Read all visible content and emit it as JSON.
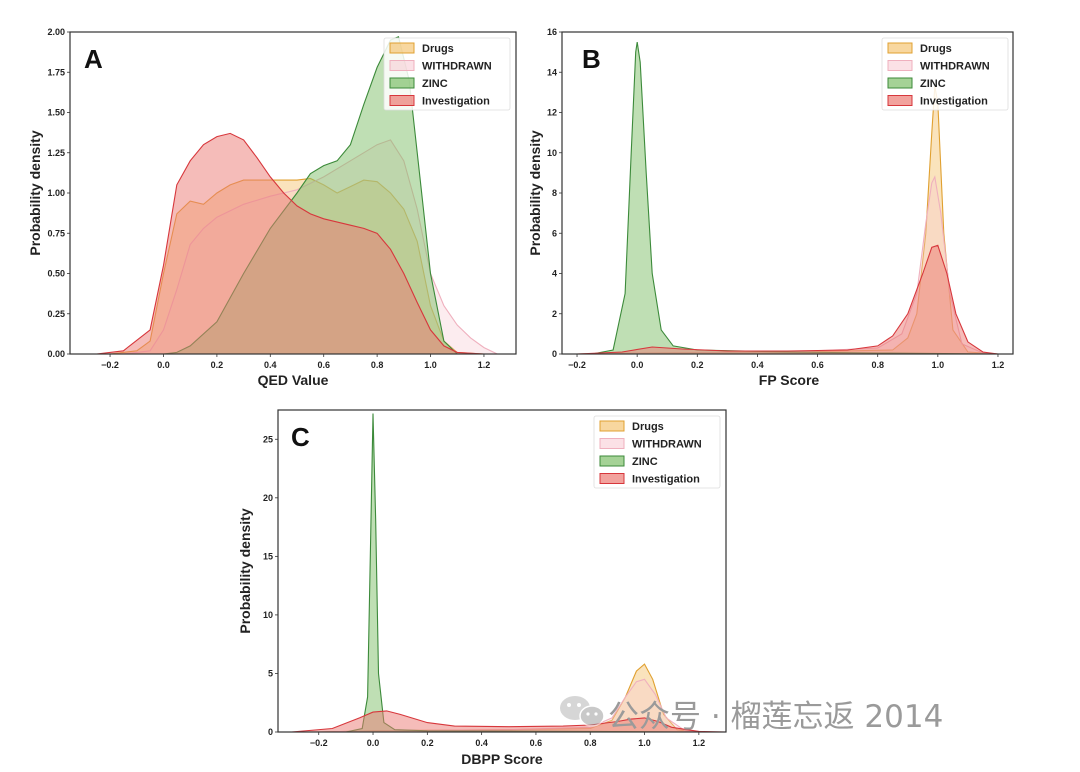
{
  "series_styles": [
    {
      "name": "Drugs",
      "fill": "#f5c26b",
      "stroke": "#e0a030",
      "opacity": 0.45
    },
    {
      "name": "WITHDRAWN",
      "fill": "#f7c9d2",
      "stroke": "#efb0be",
      "opacity": 0.35
    },
    {
      "name": "ZINC",
      "fill": "#7fbf6a",
      "stroke": "#3c8a3a",
      "opacity": 0.5
    },
    {
      "name": "Investigation",
      "fill": "#ec7a74",
      "stroke": "#d7373c",
      "opacity": 0.5
    }
  ],
  "chart_data": [
    {
      "panel": "A",
      "type": "area",
      "xlabel": "QED Value",
      "ylabel": "Probability density",
      "xlim": [
        -0.35,
        1.32
      ],
      "ylim": [
        0,
        2.0
      ],
      "xticks": [
        -0.2,
        0.0,
        0.2,
        0.4,
        0.6,
        0.8,
        1.0,
        1.2
      ],
      "xtick_labels": [
        "−0.2",
        "0.0",
        "0.2",
        "0.4",
        "0.6",
        "0.8",
        "1.0",
        "1.2"
      ],
      "yticks": [
        0,
        0.25,
        0.5,
        0.75,
        1.0,
        1.25,
        1.5,
        1.75,
        2.0
      ],
      "ytick_labels": [
        "0.00",
        "0.25",
        "0.50",
        "0.75",
        "1.00",
        "1.25",
        "1.50",
        "1.75",
        "2.00"
      ],
      "legend": "top-right",
      "series": [
        {
          "name": "Drugs",
          "points": [
            [
              -0.2,
              0
            ],
            [
              -0.1,
              0.02
            ],
            [
              -0.05,
              0.08
            ],
            [
              0.0,
              0.5
            ],
            [
              0.05,
              0.87
            ],
            [
              0.1,
              0.95
            ],
            [
              0.15,
              0.93
            ],
            [
              0.2,
              1.0
            ],
            [
              0.25,
              1.05
            ],
            [
              0.3,
              1.08
            ],
            [
              0.4,
              1.08
            ],
            [
              0.5,
              1.08
            ],
            [
              0.55,
              1.09
            ],
            [
              0.6,
              1.05
            ],
            [
              0.65,
              1.0
            ],
            [
              0.7,
              1.04
            ],
            [
              0.75,
              1.08
            ],
            [
              0.8,
              1.07
            ],
            [
              0.85,
              1.0
            ],
            [
              0.9,
              0.9
            ],
            [
              0.95,
              0.7
            ],
            [
              1.0,
              0.3
            ],
            [
              1.05,
              0.08
            ],
            [
              1.1,
              0.01
            ],
            [
              1.2,
              0
            ]
          ]
        },
        {
          "name": "WITHDRAWN",
          "points": [
            [
              -0.15,
              0
            ],
            [
              -0.05,
              0.02
            ],
            [
              0.0,
              0.15
            ],
            [
              0.05,
              0.4
            ],
            [
              0.1,
              0.68
            ],
            [
              0.15,
              0.78
            ],
            [
              0.2,
              0.85
            ],
            [
              0.3,
              0.93
            ],
            [
              0.4,
              0.98
            ],
            [
              0.5,
              1.02
            ],
            [
              0.6,
              1.1
            ],
            [
              0.7,
              1.2
            ],
            [
              0.8,
              1.3
            ],
            [
              0.85,
              1.33
            ],
            [
              0.9,
              1.2
            ],
            [
              0.95,
              0.9
            ],
            [
              1.0,
              0.5
            ],
            [
              1.05,
              0.3
            ],
            [
              1.1,
              0.18
            ],
            [
              1.15,
              0.1
            ],
            [
              1.2,
              0.04
            ],
            [
              1.25,
              0
            ]
          ]
        },
        {
          "name": "ZINC",
          "points": [
            [
              0.0,
              0
            ],
            [
              0.05,
              0.01
            ],
            [
              0.1,
              0.05
            ],
            [
              0.2,
              0.2
            ],
            [
              0.3,
              0.5
            ],
            [
              0.4,
              0.78
            ],
            [
              0.5,
              1.0
            ],
            [
              0.55,
              1.12
            ],
            [
              0.6,
              1.17
            ],
            [
              0.65,
              1.2
            ],
            [
              0.7,
              1.3
            ],
            [
              0.75,
              1.55
            ],
            [
              0.8,
              1.78
            ],
            [
              0.85,
              1.95
            ],
            [
              0.88,
              1.97
            ],
            [
              0.92,
              1.7
            ],
            [
              0.96,
              1.1
            ],
            [
              1.0,
              0.5
            ],
            [
              1.05,
              0.08
            ],
            [
              1.1,
              0
            ]
          ]
        },
        {
          "name": "Investigation",
          "points": [
            [
              -0.25,
              0
            ],
            [
              -0.15,
              0.02
            ],
            [
              -0.05,
              0.15
            ],
            [
              0.0,
              0.55
            ],
            [
              0.05,
              1.05
            ],
            [
              0.1,
              1.2
            ],
            [
              0.15,
              1.3
            ],
            [
              0.2,
              1.35
            ],
            [
              0.25,
              1.37
            ],
            [
              0.3,
              1.33
            ],
            [
              0.35,
              1.22
            ],
            [
              0.4,
              1.1
            ],
            [
              0.45,
              1.0
            ],
            [
              0.5,
              0.92
            ],
            [
              0.55,
              0.87
            ],
            [
              0.6,
              0.84
            ],
            [
              0.7,
              0.8
            ],
            [
              0.75,
              0.78
            ],
            [
              0.8,
              0.75
            ],
            [
              0.85,
              0.65
            ],
            [
              0.9,
              0.5
            ],
            [
              0.95,
              0.32
            ],
            [
              1.0,
              0.15
            ],
            [
              1.05,
              0.05
            ],
            [
              1.1,
              0.01
            ],
            [
              1.2,
              0
            ]
          ]
        }
      ]
    },
    {
      "panel": "B",
      "type": "area",
      "xlabel": "FP Score",
      "ylabel": "Probability density",
      "xlim": [
        -0.25,
        1.25
      ],
      "ylim": [
        0,
        16.0
      ],
      "xticks": [
        -0.2,
        0.0,
        0.2,
        0.4,
        0.6,
        0.8,
        1.0,
        1.2
      ],
      "xtick_labels": [
        "−0.2",
        "0.0",
        "0.2",
        "0.4",
        "0.6",
        "0.8",
        "1.0",
        "1.2"
      ],
      "yticks": [
        0,
        2,
        4,
        6,
        8,
        10,
        12,
        14,
        16
      ],
      "ytick_labels": [
        "0",
        "2",
        "4",
        "6",
        "8",
        "10",
        "12",
        "14",
        "16"
      ],
      "legend": "top-right",
      "series": [
        {
          "name": "Drugs",
          "points": [
            [
              -0.2,
              0
            ],
            [
              0.0,
              0.05
            ],
            [
              0.5,
              0.1
            ],
            [
              0.85,
              0.2
            ],
            [
              0.9,
              0.8
            ],
            [
              0.93,
              2.0
            ],
            [
              0.96,
              6.0
            ],
            [
              0.98,
              11.0
            ],
            [
              0.99,
              13.3
            ],
            [
              1.0,
              12.5
            ],
            [
              1.02,
              6.0
            ],
            [
              1.05,
              1.2
            ],
            [
              1.1,
              0.1
            ],
            [
              1.2,
              0
            ]
          ]
        },
        {
          "name": "WITHDRAWN",
          "points": [
            [
              -0.2,
              0
            ],
            [
              0.0,
              0.05
            ],
            [
              0.5,
              0.1
            ],
            [
              0.8,
              0.3
            ],
            [
              0.88,
              1.0
            ],
            [
              0.93,
              3.0
            ],
            [
              0.96,
              6.5
            ],
            [
              0.98,
              8.5
            ],
            [
              0.99,
              8.8
            ],
            [
              1.01,
              7.0
            ],
            [
              1.04,
              3.0
            ],
            [
              1.08,
              0.5
            ],
            [
              1.15,
              0.05
            ],
            [
              1.2,
              0
            ]
          ]
        },
        {
          "name": "ZINC",
          "points": [
            [
              -0.15,
              0
            ],
            [
              -0.08,
              0.2
            ],
            [
              -0.04,
              3.0
            ],
            [
              -0.02,
              10.0
            ],
            [
              -0.005,
              15.0
            ],
            [
              0.0,
              15.5
            ],
            [
              0.01,
              14.5
            ],
            [
              0.03,
              9.0
            ],
            [
              0.05,
              4.0
            ],
            [
              0.08,
              1.2
            ],
            [
              0.12,
              0.4
            ],
            [
              0.2,
              0.2
            ],
            [
              0.5,
              0.1
            ],
            [
              0.8,
              0.05
            ],
            [
              1.2,
              0
            ]
          ]
        },
        {
          "name": "Investigation",
          "points": [
            [
              -0.2,
              0
            ],
            [
              -0.05,
              0.1
            ],
            [
              0.05,
              0.35
            ],
            [
              0.15,
              0.25
            ],
            [
              0.3,
              0.15
            ],
            [
              0.5,
              0.15
            ],
            [
              0.7,
              0.2
            ],
            [
              0.8,
              0.4
            ],
            [
              0.85,
              0.9
            ],
            [
              0.9,
              2.0
            ],
            [
              0.95,
              4.0
            ],
            [
              0.98,
              5.3
            ],
            [
              1.0,
              5.4
            ],
            [
              1.03,
              4.0
            ],
            [
              1.06,
              2.0
            ],
            [
              1.1,
              0.6
            ],
            [
              1.15,
              0.1
            ],
            [
              1.2,
              0
            ]
          ]
        }
      ]
    },
    {
      "panel": "C",
      "type": "area",
      "xlabel": "DBPP Score",
      "ylabel": "Probability density",
      "xlim": [
        -0.35,
        1.3
      ],
      "ylim": [
        0,
        27.5
      ],
      "xticks": [
        -0.2,
        0.0,
        0.2,
        0.4,
        0.6,
        0.8,
        1.0,
        1.2
      ],
      "xtick_labels": [
        "−0.2",
        "0.0",
        "0.2",
        "0.4",
        "0.6",
        "0.8",
        "1.0",
        "1.2"
      ],
      "yticks": [
        0,
        5,
        10,
        15,
        20,
        25
      ],
      "ytick_labels": [
        "0",
        "5",
        "10",
        "15",
        "20",
        "25"
      ],
      "legend": "top-right",
      "series": [
        {
          "name": "Drugs",
          "points": [
            [
              -0.2,
              0
            ],
            [
              0.0,
              0.1
            ],
            [
              0.5,
              0.2
            ],
            [
              0.8,
              0.3
            ],
            [
              0.88,
              1.0
            ],
            [
              0.93,
              3.0
            ],
            [
              0.97,
              5.2
            ],
            [
              1.0,
              5.8
            ],
            [
              1.03,
              4.5
            ],
            [
              1.07,
              1.5
            ],
            [
              1.12,
              0.2
            ],
            [
              1.2,
              0
            ]
          ]
        },
        {
          "name": "WITHDRAWN",
          "points": [
            [
              -0.2,
              0
            ],
            [
              0.0,
              0.1
            ],
            [
              0.5,
              0.2
            ],
            [
              0.8,
              0.4
            ],
            [
              0.88,
              1.2
            ],
            [
              0.93,
              3.0
            ],
            [
              0.97,
              4.3
            ],
            [
              1.0,
              4.5
            ],
            [
              1.04,
              3.2
            ],
            [
              1.08,
              1.2
            ],
            [
              1.15,
              0.1
            ],
            [
              1.25,
              0
            ]
          ]
        },
        {
          "name": "ZINC",
          "points": [
            [
              -0.1,
              0
            ],
            [
              -0.04,
              0.3
            ],
            [
              -0.02,
              3.0
            ],
            [
              -0.01,
              15.0
            ],
            [
              0.0,
              27.2
            ],
            [
              0.01,
              18.0
            ],
            [
              0.02,
              5.0
            ],
            [
              0.04,
              0.8
            ],
            [
              0.08,
              0.2
            ],
            [
              0.2,
              0.1
            ],
            [
              0.8,
              0.05
            ],
            [
              1.2,
              0
            ]
          ]
        },
        {
          "name": "Investigation",
          "points": [
            [
              -0.3,
              0
            ],
            [
              -0.15,
              0.3
            ],
            [
              -0.05,
              1.2
            ],
            [
              0.0,
              1.7
            ],
            [
              0.05,
              1.8
            ],
            [
              0.1,
              1.5
            ],
            [
              0.2,
              0.8
            ],
            [
              0.3,
              0.5
            ],
            [
              0.5,
              0.45
            ],
            [
              0.7,
              0.5
            ],
            [
              0.8,
              0.6
            ],
            [
              0.9,
              0.9
            ],
            [
              0.95,
              1.1
            ],
            [
              1.0,
              1.2
            ],
            [
              1.05,
              0.9
            ],
            [
              1.1,
              0.4
            ],
            [
              1.2,
              0.05
            ],
            [
              1.3,
              0
            ]
          ]
        }
      ]
    }
  ],
  "watermark": {
    "text": "公众号 · 榴莲忘返 2014",
    "icon": "wechat-icon"
  }
}
